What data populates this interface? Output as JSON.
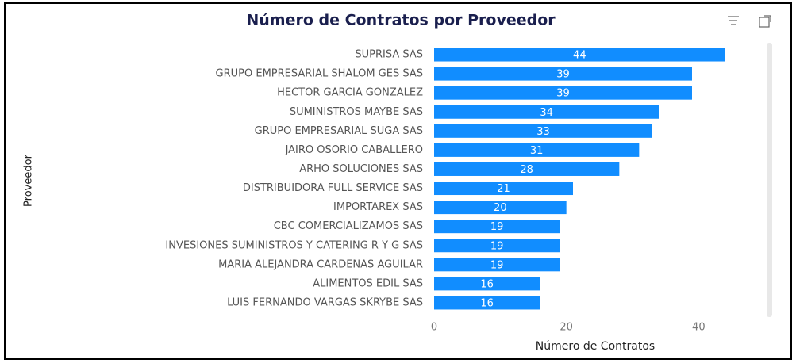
{
  "chart_data": {
    "type": "bar",
    "orientation": "horizontal",
    "title": "Número de Contratos por Proveedor",
    "xlabel": "Número de Contratos",
    "ylabel": "Proveedor",
    "categories": [
      "SUPRISA SAS",
      "GRUPO EMPRESARIAL SHALOM GES SAS",
      "HECTOR GARCIA GONZALEZ",
      "SUMINISTROS MAYBE SAS",
      "GRUPO EMPRESARIAL SUGA SAS",
      "JAIRO OSORIO CABALLERO",
      "ARHO SOLUCIONES SAS",
      "DISTRIBUIDORA FULL SERVICE SAS",
      "IMPORTAREX SAS",
      "CBC COMERCIALIZAMOS SAS",
      "INVESIONES SUMINISTROS Y CATERING R Y G SAS",
      "MARIA ALEJANDRA CARDENAS AGUILAR",
      "ALIMENTOS EDIL SAS",
      "LUIS FERNANDO VARGAS SKRYBE SAS"
    ],
    "values": [
      44,
      39,
      39,
      34,
      33,
      31,
      28,
      21,
      20,
      19,
      19,
      19,
      16,
      16
    ],
    "color": "#118dff",
    "xlim": [
      0,
      48
    ],
    "xticks": [
      0,
      20,
      40
    ],
    "grid": false
  }
}
